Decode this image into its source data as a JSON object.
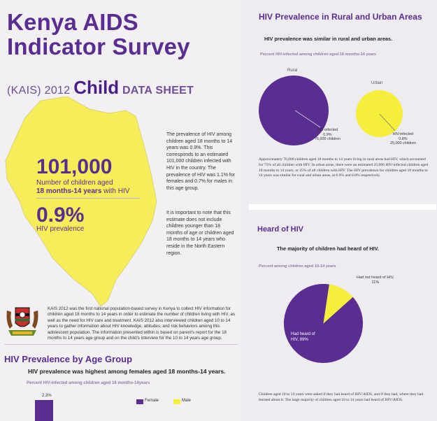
{
  "header": {
    "title_line1": "Kenya AIDS",
    "title_line2": "Indicator Survey",
    "subtitle_pre": "(KAIS) 2012 ",
    "subtitle_child": "Child",
    "subtitle_post": " DATA SHEET"
  },
  "colors": {
    "purple": "#5a2d91",
    "yellow": "#f5ee3a"
  },
  "map": {
    "big_number": "101,000",
    "big_label_1": "Number of children aged",
    "big_label_2": "18 months-14 years",
    "big_label_3": " with HIV",
    "pct": "0.9%",
    "pct_label": "HIV prevalence"
  },
  "text": {
    "para1": "The prevalence of HIV among children aged 18 months to 14 years was 0.9%. This corresponds to an estimated 101,000 children infected with HIV in the country. The prevalence of HIV was 1.1% for females and 0.7% for males in this age group.",
    "para2": "It is important to note that this estimate does not include children younger than 18 months of age or children aged 18 months to 14 years who reside in the North Eastern region.",
    "intro": "KAIS 2012 was the first national population-based survey in Kenya to collect HIV information for children aged 18 months to 14 years in order to estimate the number of children living with HIV, as well as the need for HIV care and treatment. KAIS 2012 also interviewed children aged 10 to 14 years to gather information about HIV knowledge, attitudes, and risk behaviors among this adolescent population. The information presented within is based on parent's report for the 18 months to 14 years age group and on the child's interview for the 10 to 14 years age group."
  },
  "age_section": {
    "heading": "HIV Prevalence by Age Group",
    "subheading": "HIV prevalence was highest among females aged 18 months-14 years.",
    "note": "Percent HIV-infected among children aged 18 months-14years",
    "bar_label": "2.3%",
    "bar_value": 2.3,
    "legend_female": "Female",
    "legend_male": "Male"
  },
  "rural_urban": {
    "heading": "HIV Prevalence in Rural and Urban Areas",
    "subheading": "HIV prevalence was similar in rural and urban areas.",
    "note": "Percent HIV-infected among children aged 18 months-14 years",
    "rural_title": "Rural",
    "urban_title": "Urban",
    "rural_callout_1": "HIV-infected",
    "rural_callout_2": "0.9%",
    "rural_callout_3": "76,000 children",
    "urban_callout_1": "HIV-infected",
    "urban_callout_2": "0.8%",
    "urban_callout_3": "25,000 children",
    "rural_value": 0.9,
    "urban_value": 0.8,
    "paragraph": "Approximately 76,000 children aged 18 months to 14 years living in rural areas had HIV, which accounted for 75% of all children with HIV. In urban areas, there were an estimated 25,000 HIV-infected children aged 18 months to 14 years, or 25% of all children with HIV. The HIV prevalence for children aged 18 months to 14 years was similar for rural and urban areas, at 0.9% and 0.8% respectively."
  },
  "heard": {
    "heading": "Heard of HIV",
    "subheading": "The majority of children had heard of HIV.",
    "note": "Percent among children aged 10-14 years",
    "not_heard_1": "Had not heard of HIV,",
    "not_heard_2": "11%",
    "heard_1": "Had heard of",
    "heard_2": "HIV, 89%",
    "paragraph": "Children aged 10 to 14 years were asked if they had heard of HIV/AIDS, and if they had, where they had learned about it. The large majority of children aged 10 to 14 years had heard of HIV/AIDS."
  },
  "chart_data": [
    {
      "type": "pie",
      "title": "Percent among children aged 10-14 years",
      "categories": [
        "Had heard of HIV",
        "Had not heard of HIV"
      ],
      "values": [
        89,
        11
      ]
    },
    {
      "type": "bar",
      "title": "Percent HIV-infected among children aged 18 months-14years",
      "categories": [
        ""
      ],
      "series": [
        {
          "name": "Female",
          "values": [
            2.3
          ]
        }
      ],
      "legend": [
        "Female",
        "Male"
      ]
    }
  ]
}
